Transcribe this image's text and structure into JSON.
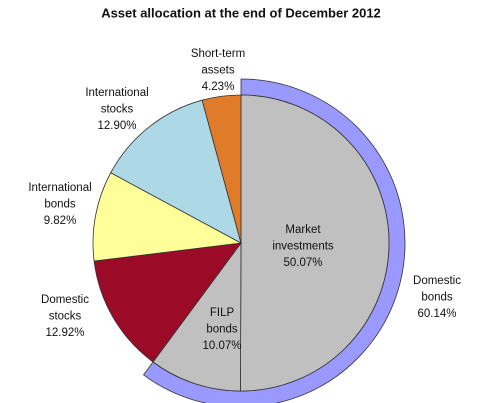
{
  "chart_data": {
    "type": "pie",
    "title": "Asset allocation at the end of December 2012",
    "categories": [
      [
        "Market",
        "investments"
      ],
      [
        "FILP",
        "bonds"
      ],
      [
        "Domestic",
        "stocks"
      ],
      [
        "International",
        "bonds"
      ],
      [
        "International",
        "stocks"
      ],
      [
        "Short-term",
        "assets"
      ]
    ],
    "values": [
      50.07,
      10.07,
      12.92,
      9.82,
      12.9,
      4.23
    ],
    "value_labels": [
      "50.07%",
      "10.07%",
      "12.92%",
      "9.82%",
      "12.90%",
      "4.23%"
    ],
    "colors": [
      "#c0c0c0",
      "#c0c0c0",
      "#9b0a26",
      "#ffff99",
      "#add8e6",
      "#e07b2a"
    ],
    "ring": {
      "label": [
        "Domestic",
        "bonds"
      ],
      "value": 60.14,
      "value_label": "60.14%",
      "color": "#9999ff"
    }
  }
}
